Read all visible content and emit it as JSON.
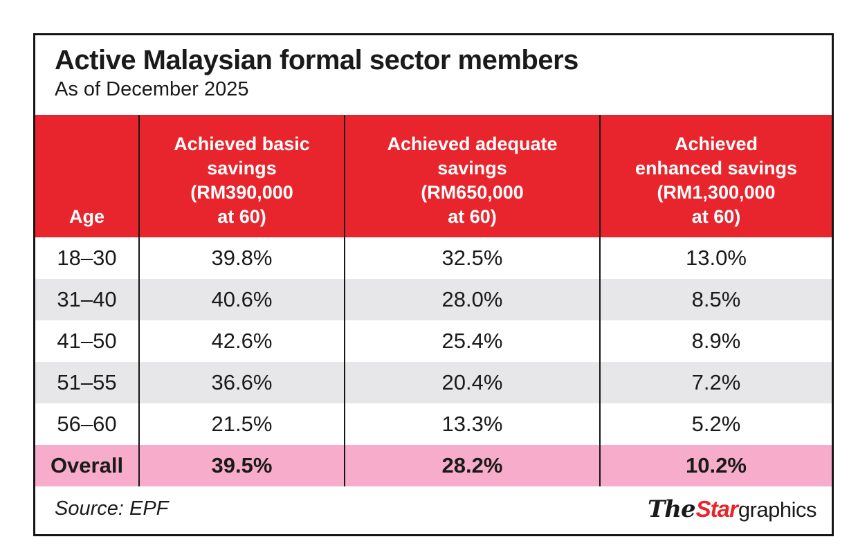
{
  "title": "Active Malaysian formal sector members",
  "subtitle": "As of December 2025",
  "colors": {
    "header_red": "#e8252c",
    "row_alt_gray": "#e7e7e9",
    "overall_pink": "#f7accb",
    "border_black": "#151515",
    "text_black": "#1a1a1a"
  },
  "table": {
    "header": [
      {
        "id": "age",
        "lines": [
          "Age"
        ]
      },
      {
        "id": "basic",
        "lines": [
          "Achieved basic",
          "savings",
          "(RM390,000",
          "at 60)"
        ]
      },
      {
        "id": "adequate",
        "lines": [
          "Achieved adequate",
          "savings",
          "(RM650,000",
          "at 60)"
        ]
      },
      {
        "id": "enhanced",
        "lines": [
          "Achieved",
          "enhanced savings",
          "(RM1,300,000",
          "at 60)"
        ]
      }
    ],
    "rows": [
      {
        "age": "18–30",
        "basic": "39.8%",
        "adequate": "32.5%",
        "enhanced": "13.0%",
        "highlight": false
      },
      {
        "age": "31–40",
        "basic": "40.6%",
        "adequate": "28.0%",
        "enhanced": "8.5%",
        "highlight": false
      },
      {
        "age": "41–50",
        "basic": "42.6%",
        "adequate": "25.4%",
        "enhanced": "8.9%",
        "highlight": false
      },
      {
        "age": "51–55",
        "basic": "36.6%",
        "adequate": "20.4%",
        "enhanced": "7.2%",
        "highlight": false
      },
      {
        "age": "56–60",
        "basic": "21.5%",
        "adequate": "13.3%",
        "enhanced": "5.2%",
        "highlight": false
      },
      {
        "age": "Overall",
        "basic": "39.5%",
        "adequate": "28.2%",
        "enhanced": "10.2%",
        "highlight": true
      }
    ]
  },
  "footer": {
    "source": "Source: EPF",
    "logo_the": "The",
    "logo_star": "Star",
    "logo_graphics": "graphics"
  },
  "chart_data": {
    "type": "table",
    "title": "Active Malaysian formal sector members",
    "subtitle": "As of December 2025",
    "columns": [
      "Age",
      "Achieved basic savings (RM390,000 at 60)",
      "Achieved adequate savings (RM650,000 at 60)",
      "Achieved enhanced savings (RM1,300,000 at 60)"
    ],
    "rows": [
      [
        "18–30",
        "39.8%",
        "32.5%",
        "13.0%"
      ],
      [
        "31–40",
        "40.6%",
        "28.0%",
        "8.5%"
      ],
      [
        "41–50",
        "42.6%",
        "25.4%",
        "8.9%"
      ],
      [
        "51–55",
        "36.6%",
        "20.4%",
        "7.2%"
      ],
      [
        "56–60",
        "21.5%",
        "13.3%",
        "5.2%"
      ],
      [
        "Overall",
        "39.5%",
        "28.2%",
        "10.2%"
      ]
    ],
    "values_numeric": {
      "basic": [
        39.8,
        40.6,
        42.6,
        36.6,
        21.5,
        39.5
      ],
      "adequate": [
        32.5,
        28.0,
        25.4,
        20.4,
        13.3,
        28.2
      ],
      "enhanced": [
        13.0,
        8.5,
        8.9,
        7.2,
        5.2,
        10.2
      ]
    },
    "source": "EPF",
    "credit": "The Star graphics"
  }
}
